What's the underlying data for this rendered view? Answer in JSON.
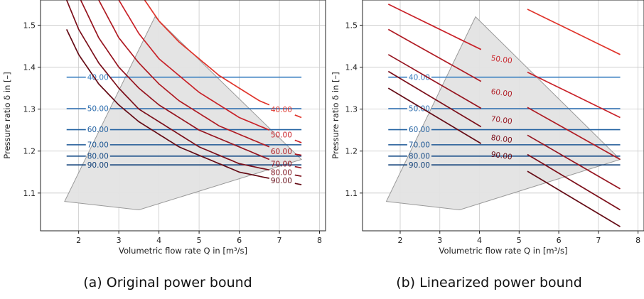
{
  "chart_data": [
    {
      "type": "line",
      "title": "",
      "caption": "(a) Original power bound",
      "xlabel": "Volumetric flow rate Q in [m³/s]",
      "ylabel": "Pressure ratio δ in [–]",
      "xlim": [
        1.05,
        8.15
      ],
      "ylim": [
        1.01,
        1.56
      ],
      "xticks": [
        2,
        3,
        4,
        5,
        6,
        7,
        8
      ],
      "yticks": [
        1.1,
        1.2,
        1.3,
        1.4,
        1.5
      ],
      "xtick_labels": [
        "2",
        "3",
        "4",
        "5",
        "6",
        "7",
        "8"
      ],
      "ytick_labels": [
        "1.1",
        "1.2",
        "1.3",
        "1.4",
        "1.5"
      ],
      "grid": true,
      "region": [
        [
          1.65,
          1.08
        ],
        [
          3.5,
          1.06
        ],
        [
          7.55,
          1.18
        ],
        [
          3.9,
          1.52
        ]
      ],
      "constant_lines": [
        {
          "label": "40.00",
          "y": 1.376,
          "x_start": 1.7,
          "x_end": 7.55,
          "color": "#3a7fc0"
        },
        {
          "label": "50.00",
          "y": 1.301,
          "x_start": 1.7,
          "x_end": 7.55,
          "color": "#2f6fb0"
        },
        {
          "label": "60.00",
          "y": 1.251,
          "x_start": 1.7,
          "x_end": 7.55,
          "color": "#2563a2"
        },
        {
          "label": "70.00",
          "y": 1.215,
          "x_start": 1.7,
          "x_end": 7.55,
          "color": "#1c5694"
        },
        {
          "label": "80.00",
          "y": 1.188,
          "x_start": 1.7,
          "x_end": 7.55,
          "color": "#144a86"
        },
        {
          "label": "90.00",
          "y": 1.167,
          "x_start": 1.7,
          "x_end": 7.55,
          "color": "#0f3f78"
        }
      ],
      "power_curves": [
        {
          "label": "40.00",
          "color": "#e0352c",
          "x": [
            1.7,
            2.0,
            2.5,
            3.0,
            3.5,
            4.0,
            4.5,
            5.0,
            5.5,
            6.0,
            6.5,
            7.0,
            7.55
          ],
          "y": [
            2.21,
            2.02,
            1.81,
            1.68,
            1.58,
            1.51,
            1.46,
            1.42,
            1.38,
            1.35,
            1.32,
            1.3,
            1.28
          ]
        },
        {
          "label": "50.00",
          "color": "#c92229",
          "x": [
            1.7,
            2.0,
            2.5,
            3.0,
            3.5,
            4.0,
            4.5,
            5.0,
            5.5,
            6.0,
            6.5,
            7.0,
            7.55
          ],
          "y": [
            1.96,
            1.83,
            1.67,
            1.56,
            1.48,
            1.42,
            1.38,
            1.34,
            1.31,
            1.28,
            1.26,
            1.24,
            1.22
          ]
        },
        {
          "label": "60.00",
          "color": "#b01c24",
          "x": [
            1.7,
            2.0,
            2.5,
            3.0,
            3.5,
            4.0,
            4.5,
            5.0,
            5.5,
            6.0,
            6.5,
            7.0,
            7.55
          ],
          "y": [
            1.78,
            1.68,
            1.56,
            1.47,
            1.41,
            1.36,
            1.32,
            1.29,
            1.26,
            1.24,
            1.22,
            1.2,
            1.19
          ]
        },
        {
          "label": "70.00",
          "color": "#961520",
          "x": [
            1.7,
            2.0,
            2.5,
            3.0,
            3.5,
            4.0,
            4.5,
            5.0,
            5.5,
            6.0,
            6.5,
            7.0,
            7.55
          ],
          "y": [
            1.65,
            1.57,
            1.47,
            1.4,
            1.35,
            1.31,
            1.28,
            1.25,
            1.23,
            1.21,
            1.19,
            1.17,
            1.16
          ]
        },
        {
          "label": "80.00",
          "color": "#7c101b",
          "x": [
            1.7,
            2.0,
            2.5,
            3.0,
            3.5,
            4.0,
            4.5,
            5.0,
            5.5,
            6.0,
            6.5,
            7.0,
            7.55
          ],
          "y": [
            1.56,
            1.49,
            1.41,
            1.35,
            1.3,
            1.27,
            1.24,
            1.21,
            1.19,
            1.17,
            1.16,
            1.15,
            1.14
          ]
        },
        {
          "label": "90.00",
          "color": "#650c16",
          "x": [
            1.7,
            2.0,
            2.5,
            3.0,
            3.5,
            4.0,
            4.5,
            5.0,
            5.5,
            6.0,
            6.5,
            7.0,
            7.55
          ],
          "y": [
            1.49,
            1.43,
            1.36,
            1.31,
            1.27,
            1.24,
            1.21,
            1.19,
            1.17,
            1.15,
            1.14,
            1.13,
            1.12
          ]
        }
      ]
    },
    {
      "type": "line",
      "title": "",
      "caption": "(b) Linearized power bound",
      "xlabel": "Volumetric flow rate Q in [m³/s]",
      "ylabel": "Pressure ratio δ in [–]",
      "xlim": [
        1.05,
        8.15
      ],
      "ylim": [
        1.01,
        1.56
      ],
      "xticks": [
        2,
        3,
        4,
        5,
        6,
        7,
        8
      ],
      "yticks": [
        1.1,
        1.2,
        1.3,
        1.4,
        1.5
      ],
      "xtick_labels": [
        "2",
        "3",
        "4",
        "5",
        "6",
        "7",
        "8"
      ],
      "ytick_labels": [
        "1.1",
        "1.2",
        "1.3",
        "1.4",
        "1.5"
      ],
      "grid": true,
      "region": [
        [
          1.65,
          1.08
        ],
        [
          3.5,
          1.06
        ],
        [
          7.55,
          1.18
        ],
        [
          3.9,
          1.52
        ]
      ],
      "constant_lines": [
        {
          "label": "40.00",
          "y": 1.376,
          "x_start": 1.7,
          "x_end": 7.55,
          "color": "#3a7fc0"
        },
        {
          "label": "50.00",
          "y": 1.301,
          "x_start": 1.7,
          "x_end": 7.55,
          "color": "#2f6fb0"
        },
        {
          "label": "60.00",
          "y": 1.251,
          "x_start": 1.7,
          "x_end": 7.55,
          "color": "#2563a2"
        },
        {
          "label": "70.00",
          "y": 1.215,
          "x_start": 1.7,
          "x_end": 7.55,
          "color": "#1c5694"
        },
        {
          "label": "80.00",
          "y": 1.188,
          "x_start": 1.7,
          "x_end": 7.55,
          "color": "#144a86"
        },
        {
          "label": "90.00",
          "y": 1.167,
          "x_start": 1.7,
          "x_end": 7.55,
          "color": "#0f3f78"
        }
      ],
      "power_curves": [
        {
          "label": "40.00",
          "color": "#e0352c",
          "x": [
            1.7,
            7.55
          ],
          "y": [
            1.7,
            1.43
          ]
        },
        {
          "label": "50.00",
          "color": "#c92229",
          "x": [
            1.7,
            7.55
          ],
          "y": [
            1.55,
            1.28
          ]
        },
        {
          "label": "60.00",
          "color": "#b01c24",
          "x": [
            1.7,
            7.55
          ],
          "y": [
            1.49,
            1.18
          ]
        },
        {
          "label": "70.00",
          "color": "#961520",
          "x": [
            1.7,
            7.55
          ],
          "y": [
            1.43,
            1.11
          ]
        },
        {
          "label": "80.00",
          "color": "#7c101b",
          "x": [
            1.7,
            7.55
          ],
          "y": [
            1.39,
            1.06
          ]
        },
        {
          "label": "90.00",
          "color": "#650c16",
          "x": [
            1.7,
            7.55
          ],
          "y": [
            1.35,
            1.02
          ]
        }
      ]
    }
  ]
}
